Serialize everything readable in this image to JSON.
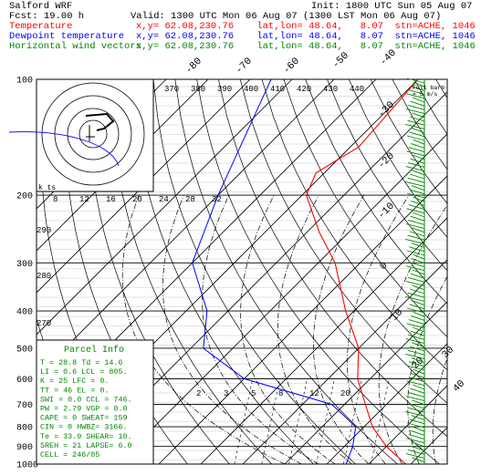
{
  "header": {
    "model": "Salford WRF",
    "init": "Init: 1800 UTC Sun 05 Aug 07",
    "fcst_label": "Fcst:",
    "fcst_value": "19.00 h",
    "valid": "Valid: 1300 UTC Mon 06 Aug 07 (1300 LST Mon 06 Aug 07)",
    "rows": [
      {
        "name": "Temperature",
        "info": "x,y= 62.08,230.76    lat,lon= 48.64,   8.07  stn=ACHE, 1046",
        "color": "#ff0000"
      },
      {
        "name": "Dewpoint temperature",
        "info": "x,y= 62.08,230.76    lat,lon= 48.64,   8.07  stn=ACHE, 1046",
        "color": "#0000ff"
      },
      {
        "name": "Horizontal wind vectors",
        "info": "x,y= 62.08,230.76    lat,lon= 48.64,   8.07  stn=ACHE, 1046",
        "color": "#008800"
      }
    ]
  },
  "colors": {
    "temperature": "#ff0000",
    "dewpoint": "#0000ff",
    "wind": "#008800",
    "parcel": "#008800",
    "axis": "#000000"
  },
  "chart_data": {
    "type": "skew-t",
    "pressure_ticks": [
      "100",
      "200",
      "300",
      "400",
      "500",
      "600",
      "700",
      "800",
      "900",
      "1000"
    ],
    "pressure_levels": [
      100,
      200,
      300,
      400,
      500,
      600,
      700,
      800,
      900,
      1000
    ],
    "temperature_isotherm_labels": [
      "-80",
      "-70",
      "-60",
      "-50",
      "-40",
      "-30",
      "-20",
      "-10",
      "0",
      "10",
      "20",
      "30",
      "40"
    ],
    "theta_e_labels": [
      "370",
      "380",
      "390",
      "400",
      "410",
      "420",
      "430",
      "440"
    ],
    "mixing_ratio_top_labels": [
      "8",
      "12",
      "16",
      "20",
      "24",
      "28",
      "32"
    ],
    "mixing_ratio_bottom_labels": [
      "2",
      "3",
      "5",
      "8",
      "12",
      "20"
    ],
    "height_labels": [
      "290",
      "280",
      "270"
    ],
    "ktm_label": "k ts",
    "temperature_profile": [
      {
        "p": 100,
        "t": -60
      },
      {
        "p": 150,
        "t": -58
      },
      {
        "p": 175,
        "t": -62
      },
      {
        "p": 200,
        "t": -59
      },
      {
        "p": 250,
        "t": -47
      },
      {
        "p": 300,
        "t": -36
      },
      {
        "p": 400,
        "t": -22
      },
      {
        "p": 500,
        "t": -10
      },
      {
        "p": 600,
        "t": -3
      },
      {
        "p": 700,
        "t": 5
      },
      {
        "p": 800,
        "t": 12
      },
      {
        "p": 900,
        "t": 20
      },
      {
        "p": 1000,
        "t": 28.8
      }
    ],
    "dewpoint_profile": [
      {
        "p": 100,
        "t": -95
      },
      {
        "p": 200,
        "t": -80
      },
      {
        "p": 300,
        "t": -70
      },
      {
        "p": 400,
        "t": -55
      },
      {
        "p": 500,
        "t": -47
      },
      {
        "p": 600,
        "t": -30
      },
      {
        "p": 700,
        "t": -3
      },
      {
        "p": 800,
        "t": 8
      },
      {
        "p": 900,
        "t": 12
      },
      {
        "p": 1000,
        "t": 14.6
      }
    ],
    "parcel_info": {
      "title": "Parcel Info",
      "rows": [
        "T   =    28.8  Td =  14.6",
        "LI  =     0.6  LCL =  805.",
        "K   =     25  LFC =    0.",
        "TT  =     46  EL   =    0.",
        "SWI =    0.0  CCL =  746.",
        "PW  =   2.79  VGP =   0.0",
        "CAPE =     0  SWEAT=  159",
        "CIN =     0  HWBZ= 3166.",
        "Te  =   33.9  SHEAR=   10.",
        "SREH =    21  LAPSE=   6.0",
        "CELL =  246/05"
      ]
    },
    "full_barb_label": "Full barb",
    "full_barb_units": "= 5 m/s"
  }
}
